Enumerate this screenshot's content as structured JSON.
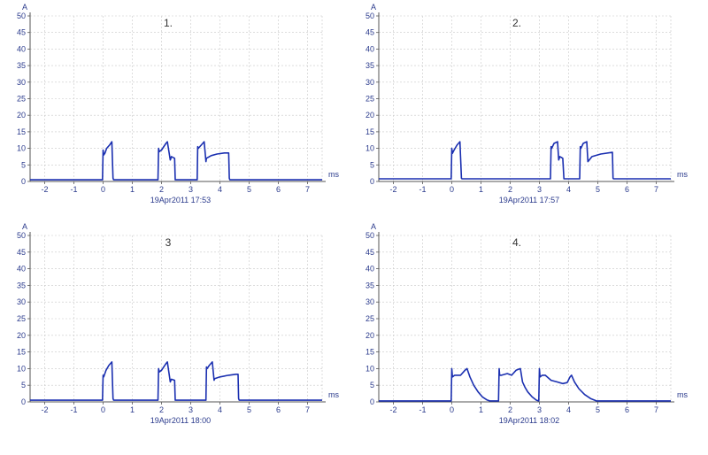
{
  "chart_data": [
    {
      "type": "line",
      "title": "1.",
      "xlabel": "ms",
      "ylabel": "A",
      "caption": "19Apr2011  17:53",
      "xlim": [
        -2.5,
        7.5
      ],
      "ylim": [
        0,
        50
      ],
      "xticks": [
        -2,
        -1,
        0,
        1,
        2,
        3,
        4,
        5,
        6,
        7
      ],
      "yticks": [
        0,
        5,
        10,
        15,
        20,
        25,
        30,
        35,
        40,
        45,
        50
      ],
      "grid": true,
      "series_color": "#1a2fb0",
      "series": [
        {
          "x": [
            -2.5,
            -0.02,
            0.0,
            0.02,
            0.06,
            0.12,
            0.22,
            0.3,
            0.34,
            0.36,
            0.4,
            1.88,
            1.9,
            1.92,
            2.0,
            2.15,
            2.2,
            2.3,
            2.32,
            2.34,
            2.45,
            2.47,
            3.22,
            3.24,
            3.26,
            3.36,
            3.46,
            3.52,
            3.54,
            3.7,
            3.9,
            4.15,
            4.3,
            4.32,
            4.34,
            7.5
          ],
          "y": [
            0.5,
            0.5,
            9.5,
            8.0,
            8.5,
            10.0,
            11.0,
            12.0,
            1.0,
            0.5,
            0.5,
            0.5,
            10.0,
            9.0,
            9.5,
            11.5,
            12.0,
            6.5,
            7.0,
            7.5,
            7.0,
            0.5,
            0.5,
            10.5,
            10.0,
            11.0,
            12.0,
            6.0,
            7.0,
            7.8,
            8.3,
            8.6,
            8.6,
            1.0,
            0.5,
            0.5
          ]
        }
      ]
    },
    {
      "type": "line",
      "title": "2.",
      "xlabel": "ms",
      "ylabel": "A",
      "caption": "19Apr2011  17:57",
      "xlim": [
        -2.5,
        7.5
      ],
      "ylim": [
        0,
        50
      ],
      "xticks": [
        -2,
        -1,
        0,
        1,
        2,
        3,
        4,
        5,
        6,
        7
      ],
      "yticks": [
        0,
        5,
        10,
        15,
        20,
        25,
        30,
        35,
        40,
        45,
        50
      ],
      "grid": true,
      "series_color": "#1a2fb0",
      "series": [
        {
          "x": [
            -2.5,
            -0.02,
            0.0,
            0.02,
            0.08,
            0.18,
            0.28,
            0.33,
            0.35,
            3.38,
            3.4,
            3.42,
            3.5,
            3.62,
            3.66,
            3.7,
            3.8,
            3.84,
            4.38,
            4.4,
            4.42,
            4.5,
            4.62,
            4.66,
            4.8,
            5.1,
            5.5,
            5.52,
            5.54,
            7.5
          ],
          "y": [
            0.8,
            0.8,
            10.0,
            8.5,
            9.5,
            11.0,
            12.0,
            1.0,
            0.8,
            0.8,
            10.5,
            10.0,
            11.5,
            12.0,
            6.5,
            7.5,
            7.0,
            0.8,
            0.8,
            10.5,
            10.0,
            11.5,
            12.0,
            6.0,
            7.5,
            8.3,
            8.8,
            1.0,
            0.8,
            0.8
          ]
        }
      ]
    },
    {
      "type": "line",
      "title": "3",
      "xlabel": "ms",
      "ylabel": "A",
      "caption": "19Apr2011  18:00",
      "xlim": [
        -2.5,
        7.5
      ],
      "ylim": [
        0,
        50
      ],
      "xticks": [
        -2,
        -1,
        0,
        1,
        2,
        3,
        4,
        5,
        6,
        7
      ],
      "yticks": [
        0,
        5,
        10,
        15,
        20,
        25,
        30,
        35,
        40,
        45,
        50
      ],
      "grid": true,
      "series_color": "#1a2fb0",
      "series": [
        {
          "x": [
            -2.5,
            -0.02,
            0.0,
            0.02,
            0.1,
            0.2,
            0.3,
            0.34,
            0.36,
            0.4,
            1.88,
            1.9,
            1.92,
            2.0,
            2.15,
            2.2,
            2.3,
            2.32,
            2.34,
            2.45,
            2.47,
            3.52,
            3.54,
            3.56,
            3.64,
            3.74,
            3.8,
            3.82,
            4.0,
            4.3,
            4.55,
            4.62,
            4.64,
            4.66,
            7.5
          ],
          "y": [
            0.5,
            0.5,
            8.0,
            7.5,
            9.5,
            11.0,
            12.0,
            1.0,
            0.5,
            0.5,
            0.5,
            10.0,
            9.0,
            9.5,
            11.5,
            12.0,
            6.0,
            6.5,
            6.8,
            6.5,
            0.5,
            0.5,
            10.5,
            10.0,
            11.0,
            12.0,
            6.5,
            7.0,
            7.5,
            8.0,
            8.3,
            8.3,
            1.0,
            0.5,
            0.5
          ]
        }
      ]
    },
    {
      "type": "line",
      "title": "4.",
      "xlabel": "ms",
      "ylabel": "A",
      "caption": "19Apr2011  18:02",
      "xlim": [
        -2.5,
        7.5
      ],
      "ylim": [
        0,
        50
      ],
      "xticks": [
        -2,
        -1,
        0,
        1,
        2,
        3,
        4,
        5,
        6,
        7
      ],
      "yticks": [
        0,
        5,
        10,
        15,
        20,
        25,
        30,
        35,
        40,
        45,
        50
      ],
      "grid": true,
      "series_color": "#1a2fb0",
      "series": [
        {
          "x": [
            -2.5,
            -0.02,
            0.0,
            0.02,
            0.1,
            0.3,
            0.45,
            0.52,
            0.62,
            0.75,
            0.9,
            1.05,
            1.2,
            1.3,
            1.4,
            1.6,
            1.62,
            1.64,
            1.7,
            1.9,
            2.05,
            2.2,
            2.35,
            2.42,
            2.5,
            2.6,
            2.75,
            2.9,
            2.98,
            3.0,
            3.02,
            3.1,
            3.2,
            3.4,
            3.6,
            3.8,
            3.95,
            4.05,
            4.1,
            4.2,
            4.35,
            4.55,
            4.75,
            4.95,
            7.5
          ],
          "y": [
            0.3,
            0.3,
            10.0,
            7.5,
            8.0,
            8.0,
            9.5,
            10.0,
            7.5,
            5.0,
            3.0,
            1.5,
            0.6,
            0.3,
            0.3,
            0.3,
            10.0,
            8.0,
            8.0,
            8.5,
            8.0,
            9.5,
            10.0,
            6.0,
            4.5,
            3.0,
            1.5,
            0.5,
            0.3,
            10.0,
            7.5,
            8.0,
            8.0,
            6.5,
            6.0,
            5.5,
            5.8,
            7.5,
            8.0,
            6.0,
            4.0,
            2.2,
            1.0,
            0.3,
            0.3
          ]
        }
      ]
    }
  ]
}
